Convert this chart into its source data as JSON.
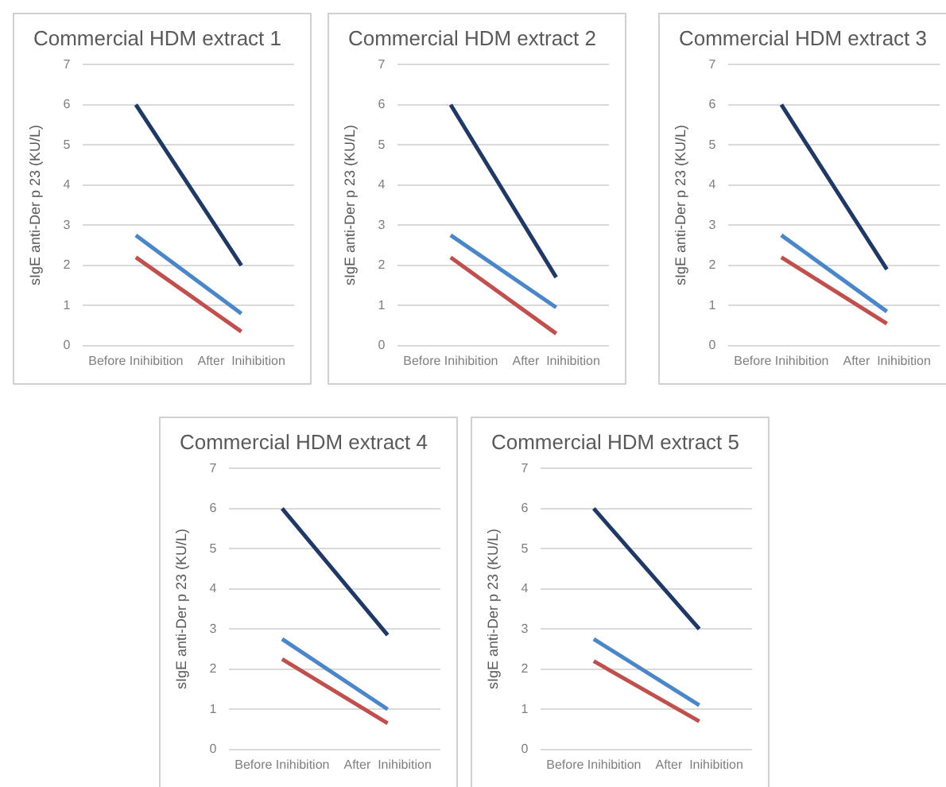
{
  "chart_data": [
    {
      "type": "line",
      "title": "Commercial HDM extract 1",
      "ylabel": "sIgE anti-Der p 23 (KU/L)",
      "categories": [
        "Before Inihibition",
        "After  Inihibition"
      ],
      "ylim": [
        0,
        7
      ],
      "yticks": [
        0,
        1,
        2,
        3,
        4,
        5,
        6,
        7
      ],
      "grid": "y",
      "marker": "none",
      "series": [
        {
          "color": "#203864",
          "values": [
            6,
            2.0
          ]
        },
        {
          "color": "#4a86c8",
          "values": [
            2.75,
            0.8
          ]
        },
        {
          "color": "#c0504d",
          "values": [
            2.2,
            0.35
          ]
        }
      ]
    },
    {
      "type": "line",
      "title": "Commercial HDM extract 2",
      "ylabel": "sIgE anti-Der p 23 (KU/L)",
      "categories": [
        "Before Inihibition",
        "After  Inihibition"
      ],
      "ylim": [
        0,
        7
      ],
      "yticks": [
        0,
        1,
        2,
        3,
        4,
        5,
        6,
        7
      ],
      "grid": "y",
      "marker": "none",
      "series": [
        {
          "color": "#203864",
          "values": [
            6,
            1.7
          ]
        },
        {
          "color": "#4a86c8",
          "values": [
            2.75,
            0.95
          ]
        },
        {
          "color": "#c0504d",
          "values": [
            2.2,
            0.3
          ]
        }
      ]
    },
    {
      "type": "line",
      "title": "Commercial HDM extract 3",
      "ylabel": "sIgE anti-Der p 23 (KU/L)",
      "categories": [
        "Before Inihibition",
        "After  Inihibition"
      ],
      "ylim": [
        0,
        7
      ],
      "yticks": [
        0,
        1,
        2,
        3,
        4,
        5,
        6,
        7
      ],
      "grid": "y",
      "marker": "none",
      "series": [
        {
          "color": "#203864",
          "values": [
            6,
            1.9
          ]
        },
        {
          "color": "#4a86c8",
          "values": [
            2.75,
            0.85
          ]
        },
        {
          "color": "#c0504d",
          "values": [
            2.2,
            0.55
          ]
        }
      ]
    },
    {
      "type": "line",
      "title": "Commercial HDM extract 4",
      "ylabel": "sIgE anti-Der p 23 (KU/L)",
      "categories": [
        "Before Inihibition",
        "After  Inihibition"
      ],
      "ylim": [
        0,
        7
      ],
      "yticks": [
        0,
        1,
        2,
        3,
        4,
        5,
        6,
        7
      ],
      "grid": "y",
      "marker": "none",
      "series": [
        {
          "color": "#203864",
          "values": [
            6,
            2.85
          ]
        },
        {
          "color": "#4a86c8",
          "values": [
            2.75,
            1.0
          ]
        },
        {
          "color": "#c0504d",
          "values": [
            2.25,
            0.65
          ]
        }
      ]
    },
    {
      "type": "line",
      "title": "Commercial HDM extract 5",
      "ylabel": "sIgE anti-Der p 23 (KU/L)",
      "categories": [
        "Before Inihibition",
        "After  Inihibition"
      ],
      "ylim": [
        0,
        7
      ],
      "yticks": [
        0,
        1,
        2,
        3,
        4,
        5,
        6,
        7
      ],
      "grid": "y",
      "marker": "none",
      "series": [
        {
          "color": "#203864",
          "values": [
            6,
            3.0
          ]
        },
        {
          "color": "#4a86c8",
          "values": [
            2.75,
            1.1
          ]
        },
        {
          "color": "#c0504d",
          "values": [
            2.2,
            0.7
          ]
        }
      ]
    }
  ]
}
